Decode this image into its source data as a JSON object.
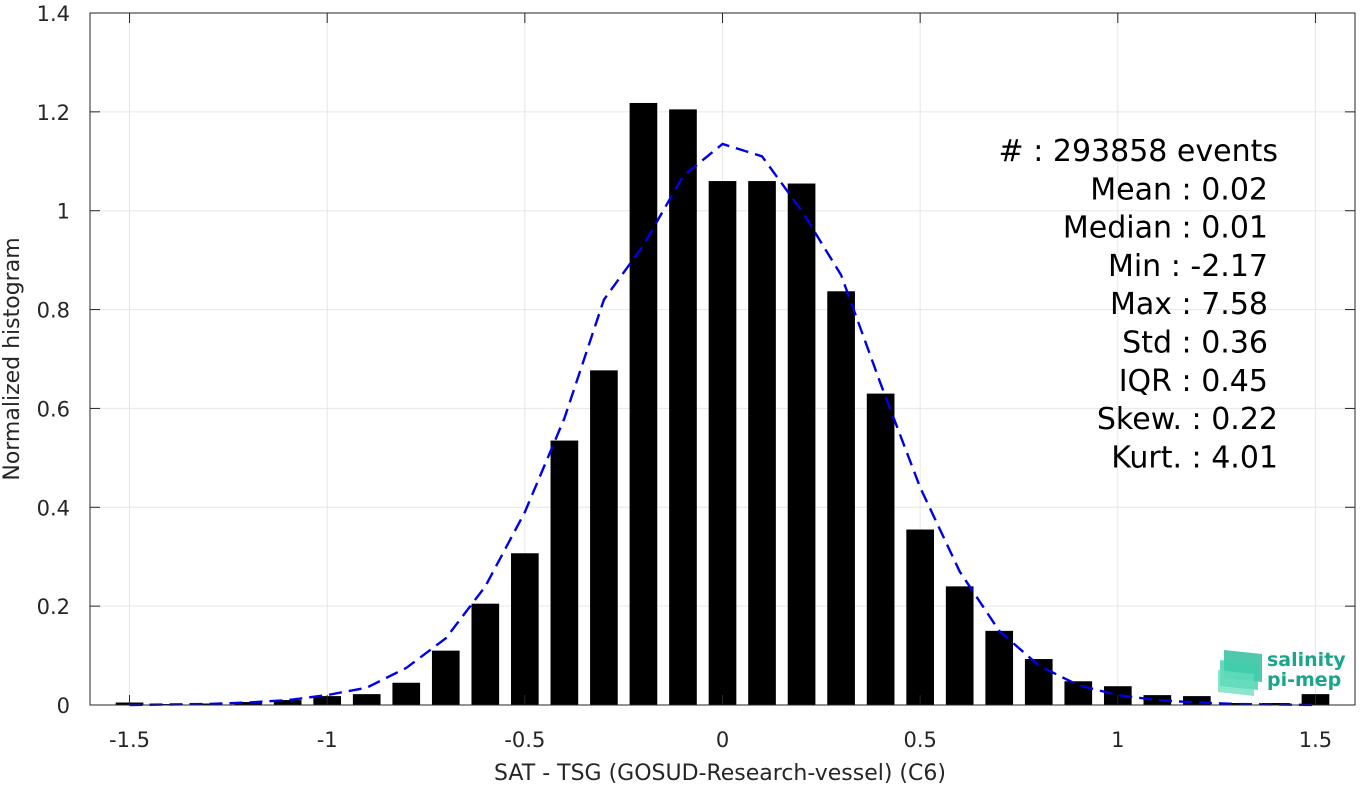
{
  "chart_data": {
    "type": "bar",
    "xlabel": "SAT - TSG (GOSUD-Research-vessel) (C6)",
    "ylabel": "Normalized histogram",
    "xlim": [
      -1.6,
      1.6
    ],
    "ylim": [
      0,
      1.4
    ],
    "grid": true,
    "x_ticks": [
      -1.5,
      -1,
      -0.5,
      0,
      0.5,
      1,
      1.5
    ],
    "x_tick_labels": [
      "-1.5",
      "-1",
      "-0.5",
      "0",
      "0.5",
      "1",
      "1.5"
    ],
    "y_ticks": [
      0,
      0.2,
      0.4,
      0.6,
      0.8,
      1,
      1.2,
      1.4
    ],
    "y_tick_labels": [
      "0",
      "0.2",
      "0.4",
      "0.6",
      "0.8",
      "1",
      "1.2",
      "1.4"
    ],
    "bar_color": "#000000",
    "curve_color": "#0000e6",
    "bar_width": 0.07,
    "bars": {
      "x": [
        -1.5,
        -1.4,
        -1.3,
        -1.2,
        -1.1,
        -1.0,
        -0.9,
        -0.8,
        -0.7,
        -0.6,
        -0.5,
        -0.4,
        -0.3,
        -0.2,
        -0.1,
        0.0,
        0.1,
        0.2,
        0.3,
        0.4,
        0.5,
        0.6,
        0.7,
        0.8,
        0.9,
        1.0,
        1.1,
        1.2,
        1.3,
        1.4,
        1.5
      ],
      "values": [
        0.005,
        0.002,
        0.003,
        0.006,
        0.01,
        0.018,
        0.022,
        0.045,
        0.11,
        0.205,
        0.307,
        0.535,
        0.677,
        1.218,
        1.205,
        1.06,
        1.06,
        1.055,
        0.837,
        0.63,
        0.355,
        0.24,
        0.15,
        0.093,
        0.048,
        0.038,
        0.02,
        0.018,
        0.004,
        0.004,
        0.022
      ]
    },
    "fit_curve": {
      "style": "dashed",
      "x": [
        -1.5,
        -1.4,
        -1.3,
        -1.2,
        -1.1,
        -1.0,
        -0.9,
        -0.8,
        -0.7,
        -0.6,
        -0.5,
        -0.4,
        -0.3,
        -0.2,
        -0.1,
        0.0,
        0.1,
        0.2,
        0.3,
        0.4,
        0.5,
        0.6,
        0.7,
        0.8,
        0.9,
        1.0,
        1.1,
        1.2,
        1.3,
        1.4,
        1.5
      ],
      "y": [
        0.0,
        0.001,
        0.002,
        0.005,
        0.01,
        0.02,
        0.035,
        0.075,
        0.135,
        0.24,
        0.39,
        0.58,
        0.82,
        0.93,
        1.07,
        1.135,
        1.11,
        1.0,
        0.87,
        0.65,
        0.44,
        0.27,
        0.15,
        0.08,
        0.04,
        0.02,
        0.01,
        0.005,
        0.002,
        0.001,
        0.0
      ]
    },
    "stats": [
      {
        "label": "#  : 293858 events"
      },
      {
        "label": "Mean : 0.02"
      },
      {
        "label": "Median : 0.01"
      },
      {
        "label": "Min : -2.17"
      },
      {
        "label": "Max : 7.58"
      },
      {
        "label": "Std : 0.36"
      },
      {
        "label": "IQR : 0.45"
      },
      {
        "label": "Skew. : 0.22"
      },
      {
        "label": "Kurt. : 4.01"
      }
    ]
  },
  "logo": {
    "line1": "salinity",
    "line2": "pi-mep",
    "color": "#1aa58c"
  }
}
